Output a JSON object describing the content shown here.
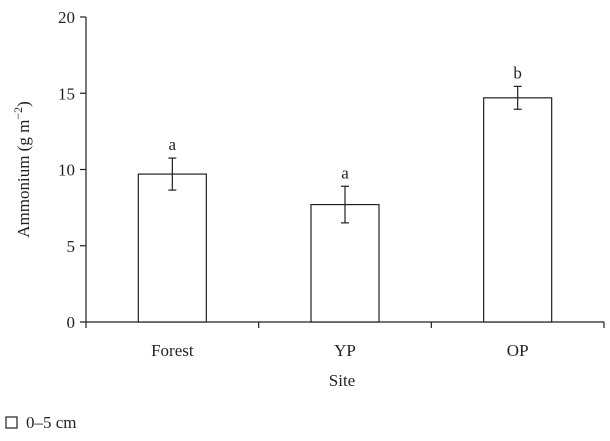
{
  "chart_data": {
    "type": "bar",
    "title": "",
    "xlabel": "Site",
    "ylabel": {
      "main": "Ammonium (g m",
      "superscript": "−2",
      "close": ")"
    },
    "categories": [
      "Forest",
      "YP",
      "OP"
    ],
    "series": [
      {
        "name": "0–5 cm",
        "values": [
          9.7,
          7.7,
          14.7
        ],
        "errors": [
          1.05,
          1.2,
          0.75
        ],
        "significance": [
          "a",
          "a",
          "b"
        ],
        "fill": "#ffffff",
        "stroke": "#231f20"
      }
    ],
    "ylim": [
      0,
      20
    ],
    "yticks": [
      0,
      5,
      10,
      15,
      20
    ],
    "ytick_labels": [
      "0",
      "5",
      "10",
      "15",
      "20"
    ],
    "grid": false,
    "legend_position": "bottom-left"
  }
}
